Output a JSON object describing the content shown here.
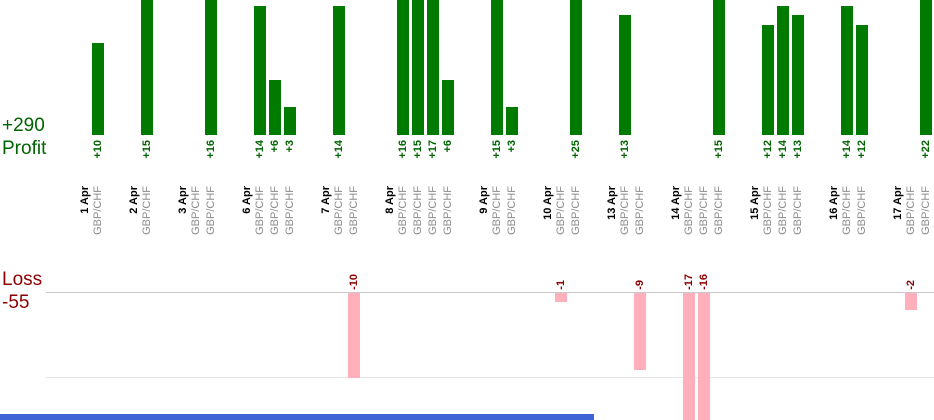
{
  "summary": {
    "profit_total": "+290",
    "profit_label": "Profit",
    "loss_label": "Loss",
    "loss_total": "-55"
  },
  "chart_data": {
    "type": "bar",
    "title": "",
    "symbol": "GBP/CHF",
    "profit_total": 290,
    "loss_total": -55,
    "groups": [
      {
        "date": "1 Apr",
        "trades": [
          10
        ]
      },
      {
        "date": "2 Apr",
        "trades": [
          15
        ]
      },
      {
        "date": "3 Apr",
        "trades": [
          0,
          16
        ]
      },
      {
        "date": "6 Apr",
        "trades": [
          14,
          6,
          3
        ]
      },
      {
        "date": "7 Apr",
        "trades": [
          14,
          -10
        ]
      },
      {
        "date": "8 Apr",
        "trades": [
          16,
          15,
          17,
          6
        ]
      },
      {
        "date": "9 Apr",
        "trades": [
          15,
          3
        ]
      },
      {
        "date": "10 Apr",
        "trades": [
          -1,
          25
        ]
      },
      {
        "date": "13 Apr",
        "trades": [
          13,
          -9
        ]
      },
      {
        "date": "14 Apr",
        "trades": [
          -17,
          -16,
          15
        ]
      },
      {
        "date": "15 Apr",
        "trades": [
          12,
          14,
          13
        ]
      },
      {
        "date": "16 Apr",
        "trades": [
          14,
          12
        ]
      },
      {
        "date": "17 Apr",
        "trades": [
          -2,
          22
        ]
      }
    ],
    "value_label_format": {
      "profit_prefix": "+",
      "loss_prefix": "-"
    },
    "colors": {
      "profit_bar": "#007a00",
      "profit_text": "#006400",
      "loss_bar": "#ffb0ba",
      "loss_text": "#8b0000",
      "date_text": "#000000",
      "symbol_text": "#8c8c8c",
      "zero_line": "#c9c9c9",
      "grid_line": "#e6e6e6",
      "scrollbar": "#3f63d4"
    },
    "axes": {
      "profit_bars_clipped_at_top_above_value": 14,
      "loss_bars_clipped_at_bottom_below_value": -15,
      "loss_gridline_value": -10,
      "grid": "loss area only",
      "legend": "none"
    }
  }
}
